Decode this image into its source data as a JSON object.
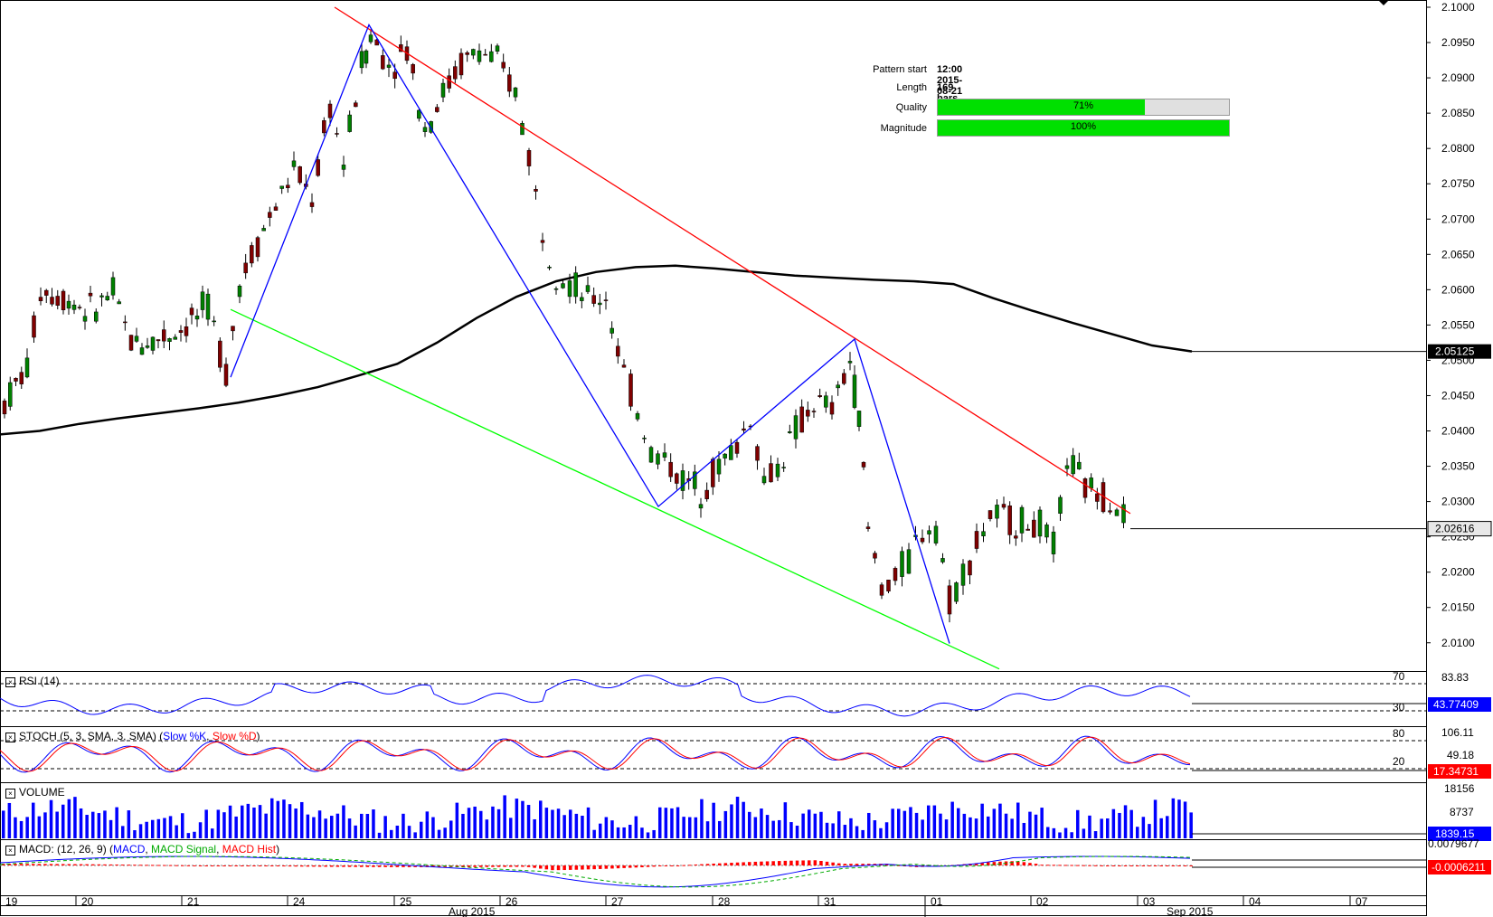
{
  "chart_data": {
    "type": "candlestick",
    "y_axis": {
      "range": [
        2.006,
        2.1
      ],
      "ticks": [
        "2.1000",
        "2.0950",
        "2.0900",
        "2.0850",
        "2.0800",
        "2.0750",
        "2.0700",
        "2.0650",
        "2.0600",
        "2.0550",
        "2.0500",
        "2.0450",
        "2.0400",
        "2.0350",
        "2.0300",
        "2.0250",
        "2.0200",
        "2.0150",
        "2.0100"
      ]
    },
    "x_axis": {
      "day_labels": [
        "19",
        "20",
        "21",
        "24",
        "25",
        "26",
        "27",
        "28",
        "31",
        "01",
        "02",
        "03",
        "04",
        "07"
      ],
      "month_labels": [
        "Aug 2015",
        "Sep 2015"
      ]
    },
    "last_price_label": "2.02616",
    "ma_label": "2.05125",
    "ma_series": [
      2.0395,
      2.04,
      2.041,
      2.0418,
      2.0425,
      2.0432,
      2.044,
      2.045,
      2.0462,
      2.0478,
      2.0495,
      2.0525,
      2.056,
      2.059,
      2.0612,
      2.0625,
      2.0632,
      2.0634,
      2.063,
      2.0625,
      2.062,
      2.0617,
      2.0614,
      2.0612,
      2.0608,
      2.0588,
      2.057,
      2.0553,
      2.0537,
      2.0521,
      2.05125
    ],
    "pattern_lines": [
      {
        "name": "resistance",
        "color": "#ff0000",
        "points": [
          [
            370,
            2.1
          ],
          [
            1250,
            2.0283
          ]
        ]
      },
      {
        "name": "support",
        "color": "#00ff00",
        "points": [
          [
            255,
            2.0572
          ],
          [
            1105,
            2.0063
          ]
        ]
      },
      {
        "name": "zigzag",
        "color": "#0000ff",
        "points": [
          [
            255,
            2.0476
          ],
          [
            408,
            2.0975
          ],
          [
            728,
            2.0293
          ],
          [
            945,
            2.053
          ],
          [
            1050,
            2.0099
          ]
        ]
      }
    ],
    "candles_ohlc": [
      {
        "anchor_x": 5,
        "anchor_y": 2.044
      },
      {
        "anchor_x": 30,
        "anchor_y": 2.049
      },
      {
        "anchor_x": 45,
        "anchor_y": 2.06
      },
      {
        "anchor_x": 70,
        "anchor_y": 2.059
      },
      {
        "anchor_x": 100,
        "anchor_y": 2.057
      },
      {
        "anchor_x": 125,
        "anchor_y": 2.0595
      },
      {
        "anchor_x": 145,
        "anchor_y": 2.0525
      },
      {
        "anchor_x": 175,
        "anchor_y": 2.053
      },
      {
        "anchor_x": 200,
        "anchor_y": 2.0545
      },
      {
        "anchor_x": 230,
        "anchor_y": 2.0575
      },
      {
        "anchor_x": 250,
        "anchor_y": 2.0485
      },
      {
        "anchor_x": 265,
        "anchor_y": 2.061
      },
      {
        "anchor_x": 285,
        "anchor_y": 2.067
      },
      {
        "anchor_x": 305,
        "anchor_y": 2.072
      },
      {
        "anchor_x": 325,
        "anchor_y": 2.077
      },
      {
        "anchor_x": 345,
        "anchor_y": 2.073
      },
      {
        "anchor_x": 365,
        "anchor_y": 2.086
      },
      {
        "anchor_x": 380,
        "anchor_y": 2.078
      },
      {
        "anchor_x": 400,
        "anchor_y": 2.092
      },
      {
        "anchor_x": 410,
        "anchor_y": 2.096
      },
      {
        "anchor_x": 430,
        "anchor_y": 2.092
      },
      {
        "anchor_x": 450,
        "anchor_y": 2.094
      },
      {
        "anchor_x": 470,
        "anchor_y": 2.083
      },
      {
        "anchor_x": 490,
        "anchor_y": 2.088
      },
      {
        "anchor_x": 510,
        "anchor_y": 2.092
      },
      {
        "anchor_x": 530,
        "anchor_y": 2.094
      },
      {
        "anchor_x": 550,
        "anchor_y": 2.092
      },
      {
        "anchor_x": 570,
        "anchor_y": 2.088
      },
      {
        "anchor_x": 585,
        "anchor_y": 2.079
      },
      {
        "anchor_x": 600,
        "anchor_y": 2.068
      },
      {
        "anchor_x": 615,
        "anchor_y": 2.063
      },
      {
        "anchor_x": 630,
        "anchor_y": 2.061
      },
      {
        "anchor_x": 650,
        "anchor_y": 2.0585
      },
      {
        "anchor_x": 670,
        "anchor_y": 2.059
      },
      {
        "anchor_x": 690,
        "anchor_y": 2.048
      },
      {
        "anchor_x": 705,
        "anchor_y": 2.043
      },
      {
        "anchor_x": 720,
        "anchor_y": 2.037
      },
      {
        "anchor_x": 735,
        "anchor_y": 2.036
      },
      {
        "anchor_x": 755,
        "anchor_y": 2.033
      },
      {
        "anchor_x": 775,
        "anchor_y": 2.032
      },
      {
        "anchor_x": 795,
        "anchor_y": 2.035
      },
      {
        "anchor_x": 815,
        "anchor_y": 2.038
      },
      {
        "anchor_x": 830,
        "anchor_y": 2.042
      },
      {
        "anchor_x": 845,
        "anchor_y": 2.033
      },
      {
        "anchor_x": 860,
        "anchor_y": 2.035
      },
      {
        "anchor_x": 880,
        "anchor_y": 2.04
      },
      {
        "anchor_x": 900,
        "anchor_y": 2.044
      },
      {
        "anchor_x": 920,
        "anchor_y": 2.043
      },
      {
        "anchor_x": 940,
        "anchor_y": 2.05
      },
      {
        "anchor_x": 950,
        "anchor_y": 2.042
      },
      {
        "anchor_x": 960,
        "anchor_y": 2.026
      },
      {
        "anchor_x": 975,
        "anchor_y": 2.018
      },
      {
        "anchor_x": 990,
        "anchor_y": 2.019
      },
      {
        "anchor_x": 1005,
        "anchor_y": 2.022
      },
      {
        "anchor_x": 1020,
        "anchor_y": 2.026
      },
      {
        "anchor_x": 1035,
        "anchor_y": 2.027
      },
      {
        "anchor_x": 1050,
        "anchor_y": 2.016
      },
      {
        "anchor_x": 1065,
        "anchor_y": 2.02
      },
      {
        "anchor_x": 1080,
        "anchor_y": 2.024
      },
      {
        "anchor_x": 1095,
        "anchor_y": 2.028
      },
      {
        "anchor_x": 1110,
        "anchor_y": 2.0275
      },
      {
        "anchor_x": 1130,
        "anchor_y": 2.027
      },
      {
        "anchor_x": 1150,
        "anchor_y": 2.0265
      },
      {
        "anchor_x": 1165,
        "anchor_y": 2.023
      },
      {
        "anchor_x": 1180,
        "anchor_y": 2.036
      },
      {
        "anchor_x": 1200,
        "anchor_y": 2.032
      },
      {
        "anchor_x": 1220,
        "anchor_y": 2.031
      },
      {
        "anchor_x": 1235,
        "anchor_y": 2.03
      },
      {
        "anchor_x": 1250,
        "anchor_y": 2.0262
      }
    ]
  },
  "info_panel": {
    "pattern_start_label": "Pattern start",
    "pattern_start_value": "12:00 2015-08-21",
    "length_label": "Length",
    "length_value": "169 bars",
    "quality_label": "Quality",
    "quality_value": "71%",
    "quality_pct": 71,
    "magnitude_label": "Magnitude",
    "magnitude_value": "100%",
    "magnitude_pct": 100
  },
  "rsi": {
    "title": "RSI (14)",
    "levels": [
      "70",
      "30"
    ],
    "scale_top": "83.83",
    "value": "43.77409",
    "value_color": "#0000ff"
  },
  "stoch": {
    "title_prefix": "STOCH (5, 3, SMA, 3, SMA) (",
    "k_label": "Slow %K",
    "d_label": "Slow %D",
    "title_suffix": ")",
    "levels": [
      "80",
      "20"
    ],
    "scale_top": "106.11",
    "scale_mid": "49.18",
    "value": "17.34731",
    "value_color": "#ff0000"
  },
  "volume": {
    "title": "VOLUME",
    "scale_top": "18156",
    "scale_mid": "8737",
    "value": "1839.15",
    "value_color": "#0000ff"
  },
  "macd": {
    "title_prefix": "MACD: (12, 26, 9) (",
    "macd_label": "MACD",
    "signal_label": "MACD Signal",
    "hist_label": "MACD Hist",
    "title_suffix": ")",
    "scale_top": "0.0079677",
    "value": "-0.0006211",
    "value_color": "#ff0000"
  },
  "colors": {
    "bull_candle": "#008000",
    "bear_candle": "#800000",
    "resistance": "#ff0000",
    "support": "#00ff00",
    "zigzag": "#0000ff",
    "moving_average": "#000000",
    "progress_fill": "#00e000"
  }
}
